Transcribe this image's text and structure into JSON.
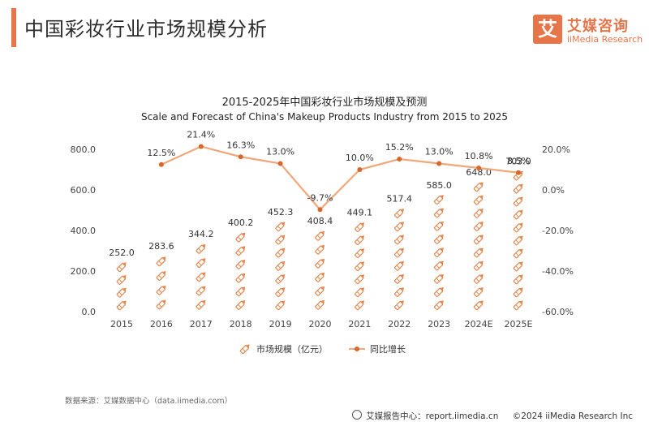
{
  "header": {
    "title": "中国彩妆行业市场规模分析",
    "logo_mark": "艾",
    "logo_name": "艾媒咨询",
    "logo_sub": "iiMedia Research"
  },
  "chart_data": {
    "type": "bar",
    "title": "2015-2025年中国彩妆行业市场规模及预测",
    "subtitle": "Scale and Forecast of China's Makeup Products Industry from 2015 to 2025",
    "categories": [
      "2015",
      "2016",
      "2017",
      "2018",
      "2019",
      "2020",
      "2021",
      "2022",
      "2023",
      "2024E",
      "2025E"
    ],
    "series": [
      {
        "name": "市场规模（亿元）",
        "type": "bar",
        "axis": "left",
        "values": [
          252.0,
          283.6,
          344.2,
          400.2,
          452.3,
          408.4,
          449.1,
          517.4,
          585.0,
          648.0,
          703.0
        ],
        "labels": [
          "252.0",
          "283.6",
          "344.2",
          "400.2",
          "452.3",
          "408.4",
          "449.1",
          "517.4",
          "585.0",
          "648.0",
          "703.0"
        ],
        "color": "#e6874f"
      },
      {
        "name": "同比增长",
        "type": "line",
        "axis": "right",
        "values": [
          null,
          12.5,
          21.4,
          16.3,
          13.0,
          -9.7,
          10.0,
          15.2,
          13.0,
          10.8,
          8.5
        ],
        "labels": [
          "",
          "12.5%",
          "21.4%",
          "16.3%",
          "13.0%",
          "-9.7%",
          "10.0%",
          "15.2%",
          "13.0%",
          "10.8%",
          "8.5%"
        ],
        "color": "#f0a779",
        "marker_color": "#d9662a"
      }
    ],
    "y_left": {
      "min": 0,
      "max": 800,
      "ticks": [
        "0.0",
        "200.0",
        "400.0",
        "600.0",
        "800.0"
      ]
    },
    "y_right": {
      "min": -60,
      "max": 20,
      "ticks": [
        "-60.0%",
        "-40.0%",
        "-20.0%",
        "0.0%",
        "20.0%"
      ]
    },
    "grid": false,
    "legend_position": "bottom-center"
  },
  "source": "数据来源：艾媒数据中心（data.iimedia.com）",
  "footer": {
    "report": "艾媒报告中心：report.iimedia.cn",
    "copyright": "©2024  iiMedia Research  Inc"
  }
}
